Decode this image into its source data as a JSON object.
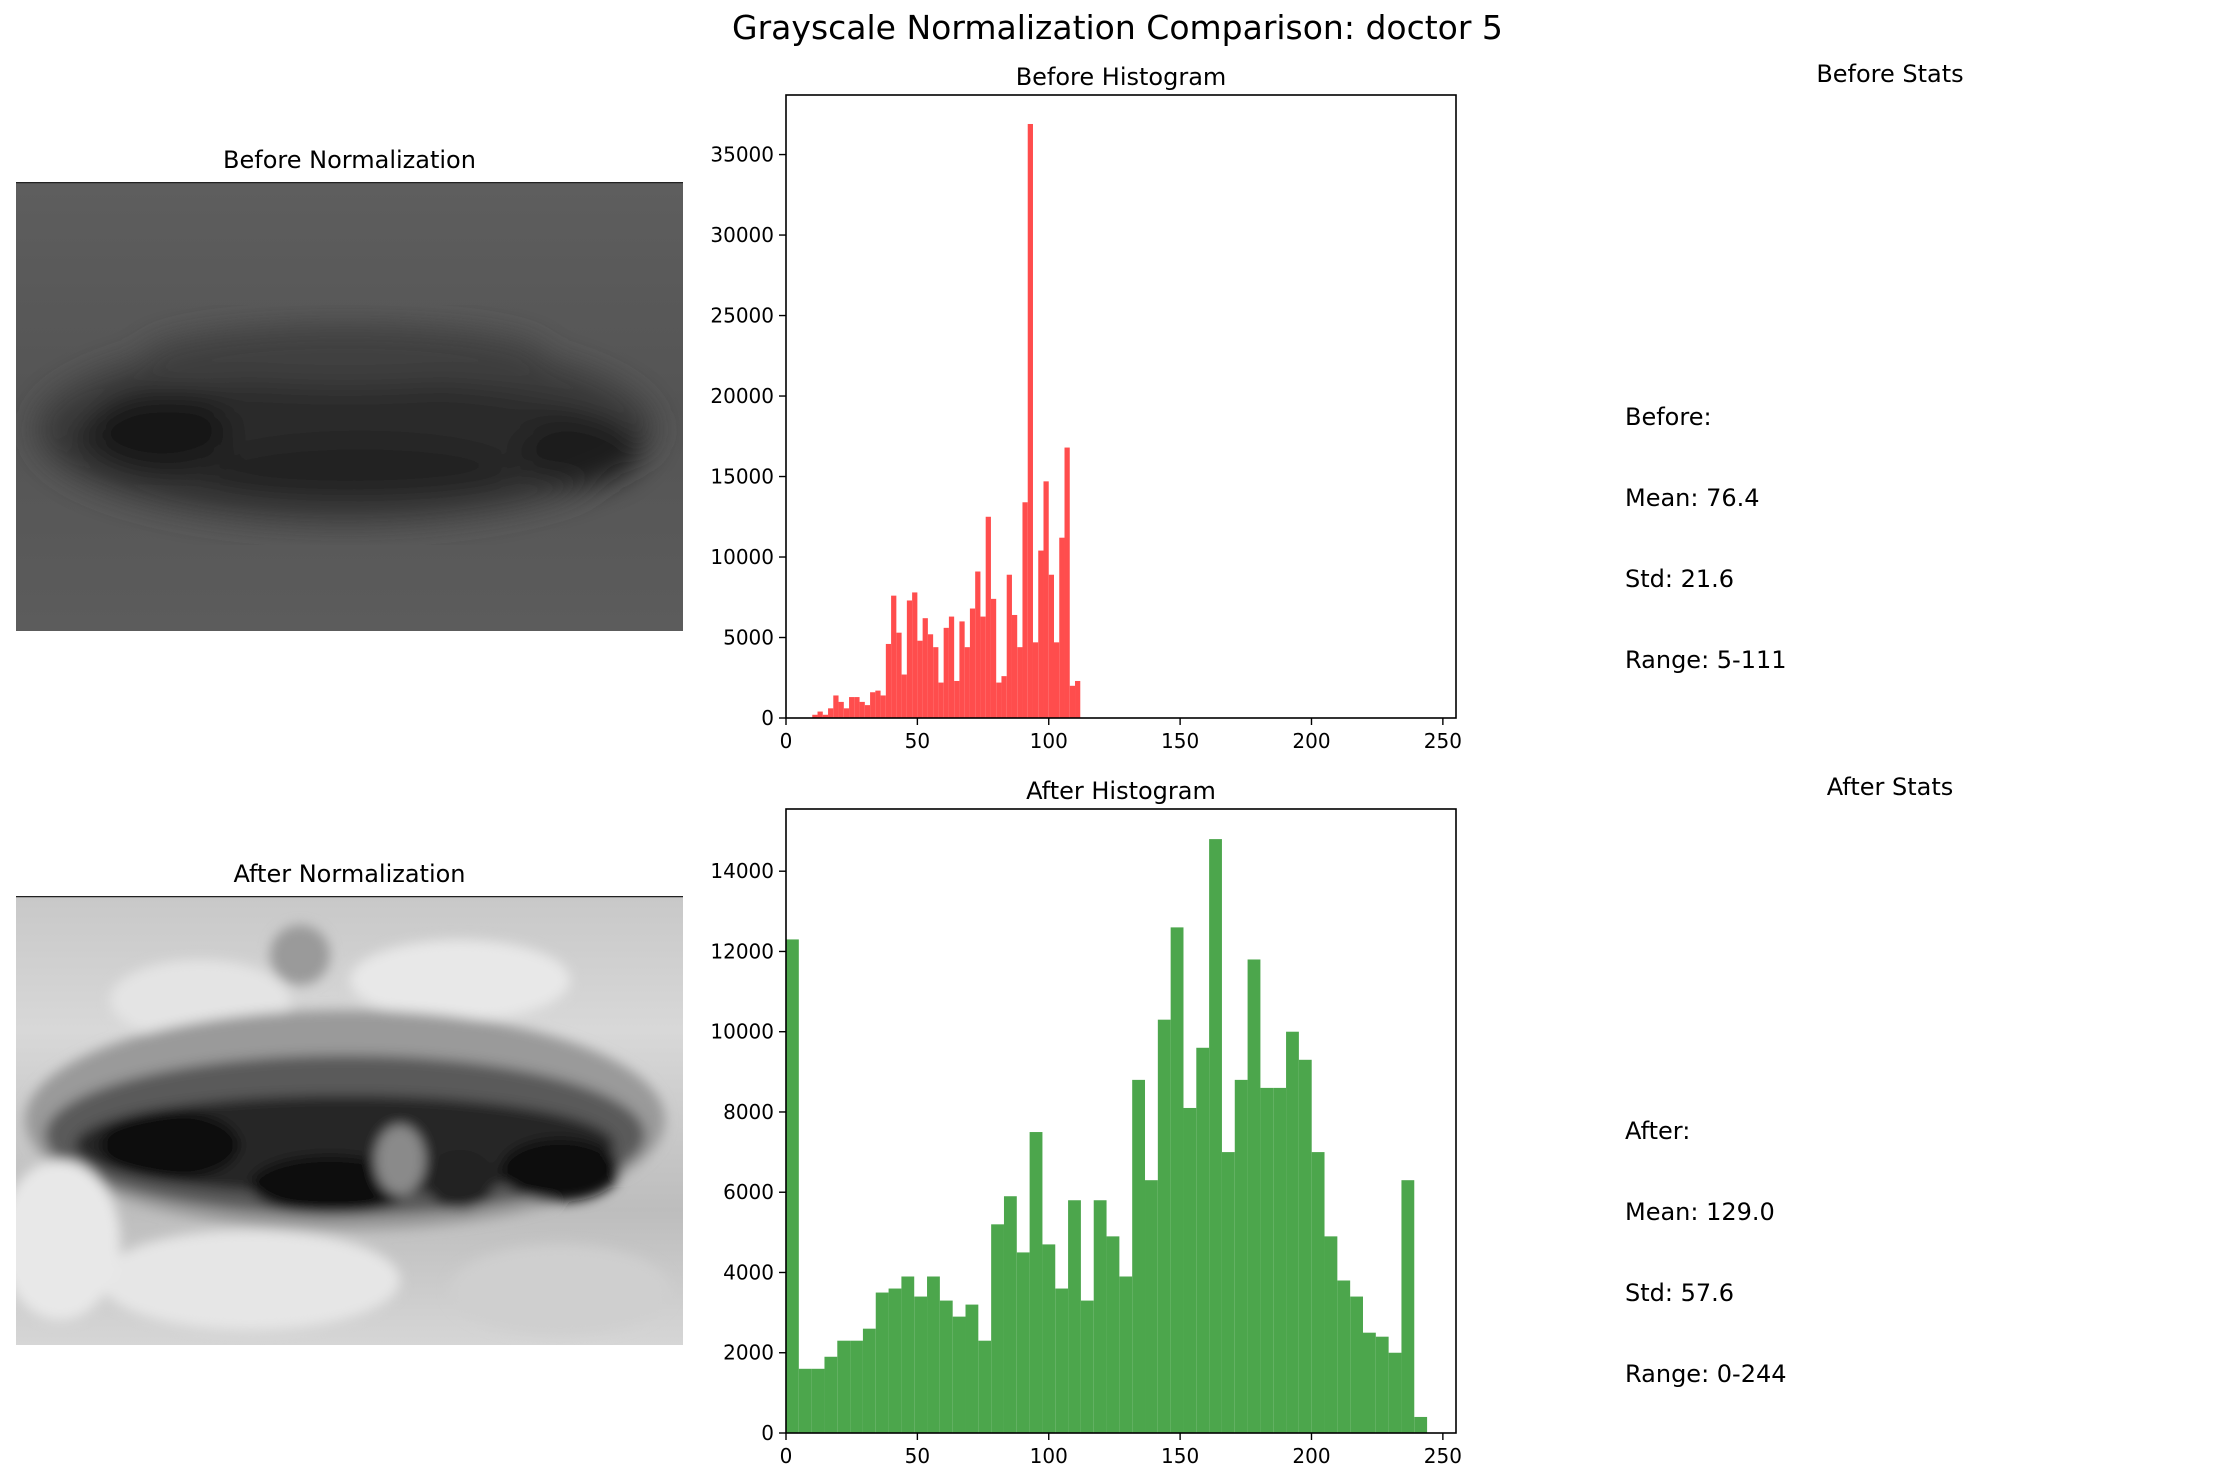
{
  "figure": {
    "title": "Grayscale Normalization Comparison: doctor 5"
  },
  "panels": {
    "before_image_title": "Before Normalization",
    "after_image_title": "After Normalization",
    "before_stats_title": "Before Stats",
    "after_stats_title": "After Stats"
  },
  "stats": {
    "before": [
      "Before:",
      "Mean: 76.4",
      "Std: 21.6",
      "Range: 5-111"
    ],
    "after": [
      "After:",
      "Mean: 129.0",
      "Std: 57.6",
      "Range: 0-244"
    ]
  },
  "chart_data": [
    {
      "type": "bar",
      "title": "Before Histogram",
      "xlabel": "",
      "ylabel": "",
      "color": "#ff4d4d",
      "xlim": [
        0,
        255
      ],
      "ylim": [
        0,
        38700
      ],
      "xticks": [
        0,
        50,
        100,
        150,
        200,
        250
      ],
      "yticks": [
        0,
        5000,
        10000,
        15000,
        20000,
        25000,
        30000,
        35000
      ],
      "bin_width": 2,
      "bins": [
        [
          10,
          200
        ],
        [
          12,
          400
        ],
        [
          14,
          200
        ],
        [
          16,
          600
        ],
        [
          18,
          1400
        ],
        [
          20,
          1000
        ],
        [
          22,
          600
        ],
        [
          24,
          1300
        ],
        [
          26,
          1300
        ],
        [
          28,
          1000
        ],
        [
          30,
          800
        ],
        [
          32,
          1600
        ],
        [
          34,
          1700
        ],
        [
          36,
          1400
        ],
        [
          38,
          4600
        ],
        [
          40,
          7600
        ],
        [
          42,
          5300
        ],
        [
          44,
          2700
        ],
        [
          46,
          7300
        ],
        [
          48,
          7800
        ],
        [
          50,
          4800
        ],
        [
          52,
          6200
        ],
        [
          54,
          5200
        ],
        [
          56,
          4400
        ],
        [
          58,
          2200
        ],
        [
          60,
          5600
        ],
        [
          62,
          6300
        ],
        [
          64,
          2300
        ],
        [
          66,
          6000
        ],
        [
          68,
          4400
        ],
        [
          70,
          6800
        ],
        [
          72,
          9100
        ],
        [
          74,
          6300
        ],
        [
          76,
          12500
        ],
        [
          78,
          7400
        ],
        [
          80,
          2200
        ],
        [
          82,
          2600
        ],
        [
          84,
          8900
        ],
        [
          86,
          6400
        ],
        [
          88,
          4400
        ],
        [
          90,
          13400
        ],
        [
          92,
          36900
        ],
        [
          94,
          4700
        ],
        [
          96,
          10400
        ],
        [
          98,
          14700
        ],
        [
          100,
          8900
        ],
        [
          102,
          4700
        ],
        [
          104,
          11200
        ],
        [
          106,
          16800
        ],
        [
          108,
          2000
        ],
        [
          110,
          2300
        ]
      ]
    },
    {
      "type": "bar",
      "title": "After Histogram",
      "xlabel": "",
      "ylabel": "",
      "color": "#4ca64c",
      "xlim": [
        0,
        255
      ],
      "ylim": [
        0,
        15550
      ],
      "xticks": [
        0,
        50,
        100,
        150,
        200,
        250
      ],
      "yticks": [
        0,
        2000,
        4000,
        6000,
        8000,
        10000,
        12000,
        14000
      ],
      "bin_width": 4.88,
      "bins": [
        [
          0,
          12300
        ],
        [
          4.88,
          1600
        ],
        [
          9.76,
          1600
        ],
        [
          14.64,
          1900
        ],
        [
          19.52,
          2300
        ],
        [
          24.4,
          2300
        ],
        [
          29.28,
          2600
        ],
        [
          34.16,
          3500
        ],
        [
          39.04,
          3600
        ],
        [
          43.92,
          3900
        ],
        [
          48.8,
          3400
        ],
        [
          53.68,
          3900
        ],
        [
          58.56,
          3300
        ],
        [
          63.44,
          2900
        ],
        [
          68.32,
          3200
        ],
        [
          73.2,
          2300
        ],
        [
          78.08,
          5200
        ],
        [
          82.96,
          5900
        ],
        [
          87.84,
          4500
        ],
        [
          92.72,
          7500
        ],
        [
          97.6,
          4700
        ],
        [
          102.48,
          3600
        ],
        [
          107.36,
          5800
        ],
        [
          112.24,
          3300
        ],
        [
          117.12,
          5800
        ],
        [
          122,
          4900
        ],
        [
          126.88,
          3900
        ],
        [
          131.76,
          8800
        ],
        [
          136.64,
          6300
        ],
        [
          141.52,
          10300
        ],
        [
          146.4,
          12600
        ],
        [
          151.28,
          8100
        ],
        [
          156.16,
          9600
        ],
        [
          161.04,
          14800
        ],
        [
          165.92,
          7000
        ],
        [
          170.8,
          8800
        ],
        [
          175.68,
          11800
        ],
        [
          180.56,
          8600
        ],
        [
          185.44,
          8600
        ],
        [
          190.32,
          10000
        ],
        [
          195.2,
          9300
        ],
        [
          200.08,
          7000
        ],
        [
          204.96,
          4900
        ],
        [
          209.84,
          3800
        ],
        [
          214.72,
          3400
        ],
        [
          219.6,
          2500
        ],
        [
          224.48,
          2400
        ],
        [
          229.36,
          2000
        ],
        [
          234.24,
          6300
        ],
        [
          239.12,
          400
        ]
      ]
    }
  ]
}
